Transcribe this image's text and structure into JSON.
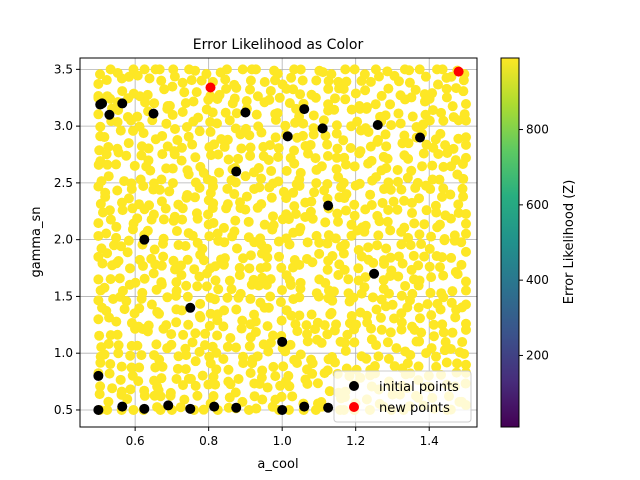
{
  "chart_data": {
    "type": "scatter",
    "title": "Error Likelihood as Color",
    "xlabel": "a_cool",
    "ylabel": "gamma_sn",
    "xlim": [
      0.45,
      1.53
    ],
    "ylim": [
      0.35,
      3.6
    ],
    "x_ticks": [
      0.6,
      0.8,
      1.0,
      1.2,
      1.4
    ],
    "x_tick_labels": [
      "0.6",
      "0.8",
      "1.0",
      "1.2",
      "1.4"
    ],
    "y_ticks": [
      0.5,
      1.0,
      1.5,
      2.0,
      2.5,
      3.0,
      3.5
    ],
    "y_tick_labels": [
      "0.5",
      "1.0",
      "1.5",
      "2.0",
      "2.5",
      "3.0",
      "3.5"
    ],
    "grid": true,
    "legend_position": "bottom-right",
    "background_samples": {
      "description_source": "dense field of samples covering the full domain",
      "x_range": [
        0.5,
        1.5
      ],
      "y_range": [
        0.5,
        3.5
      ],
      "z_value": 990,
      "color": "#fde725"
    },
    "colorbar": {
      "label": "Error Likelihood (Z)",
      "range": [
        10,
        990
      ],
      "ticks": [
        200,
        400,
        600,
        800
      ],
      "tick_labels": [
        "200",
        "400",
        "600",
        "800"
      ],
      "colormap": "viridis"
    },
    "series": [
      {
        "name": "initial points",
        "color": "#000000",
        "points": [
          [
            0.5,
            0.5
          ],
          [
            0.5,
            0.8
          ],
          [
            0.51,
            3.2
          ],
          [
            0.505,
            3.19
          ],
          [
            0.53,
            3.1
          ],
          [
            0.565,
            3.2
          ],
          [
            0.565,
            0.53
          ],
          [
            0.625,
            2.0
          ],
          [
            0.625,
            0.51
          ],
          [
            0.65,
            3.11
          ],
          [
            0.69,
            0.54
          ],
          [
            0.75,
            1.4
          ],
          [
            0.75,
            0.51
          ],
          [
            0.815,
            0.53
          ],
          [
            0.875,
            2.6
          ],
          [
            0.875,
            0.52
          ],
          [
            0.9,
            3.12
          ],
          [
            1.0,
            1.1
          ],
          [
            1.0,
            0.5
          ],
          [
            1.015,
            2.91
          ],
          [
            1.06,
            3.15
          ],
          [
            1.06,
            0.53
          ],
          [
            1.11,
            2.98
          ],
          [
            1.125,
            2.3
          ],
          [
            1.125,
            0.52
          ],
          [
            1.25,
            1.7
          ],
          [
            1.26,
            3.01
          ],
          [
            1.375,
            2.9
          ]
        ]
      },
      {
        "name": "new points",
        "color": "#ff0000",
        "points": [
          [
            0.805,
            3.34
          ],
          [
            1.48,
            3.48
          ]
        ]
      }
    ]
  }
}
